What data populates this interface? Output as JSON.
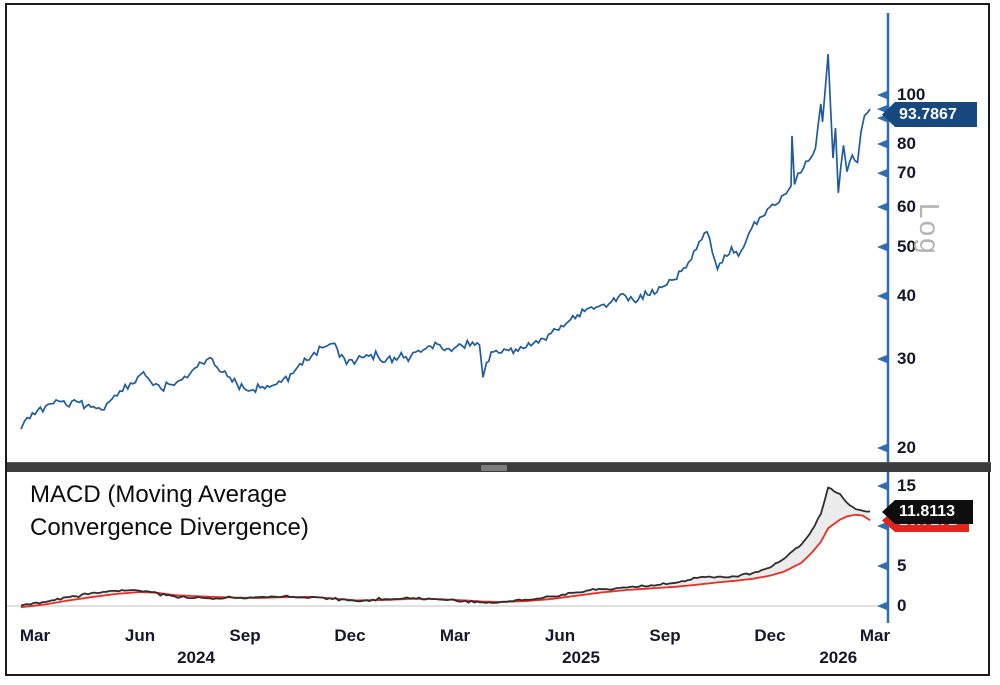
{
  "window": {
    "background": "#ffffff",
    "border_color": "#1b1b1b"
  },
  "price_panel": {
    "scale_label": "Log",
    "last_price": "93.7867",
    "line_color": "#1f5c9f",
    "axis_color": "#2e6db4",
    "badge_color": "#17497f",
    "tick_label_color": "#16162c"
  },
  "macd_panel": {
    "title_lines": {
      "0": "MACD (Moving Average",
      "1": "Convergence Divergence)"
    },
    "macd_value": "11.8113",
    "signal_value": "10.7171",
    "macd_color": "#2e2e2e",
    "signal_color": "#ee2c24",
    "fill_color": "#ebebeb",
    "zero_line_color": "#d6d6d6"
  },
  "x_axis": {
    "month_labels": [
      {
        "label": "Mar",
        "m": 0
      },
      {
        "label": "Jun",
        "m": 3
      },
      {
        "label": "Sep",
        "m": 6
      },
      {
        "label": "Dec",
        "m": 9
      },
      {
        "label": "Mar",
        "m": 12
      },
      {
        "label": "Jun",
        "m": 15
      },
      {
        "label": "Sep",
        "m": 18
      },
      {
        "label": "Dec",
        "m": 21
      },
      {
        "label": "Mar",
        "m": 24
      }
    ],
    "year_labels": [
      {
        "label": "2024",
        "m": 4.6
      },
      {
        "label": "2025",
        "m": 15.6
      },
      {
        "label": "2026",
        "m": 22.95
      }
    ]
  },
  "chart_data": [
    {
      "type": "line",
      "name": "price",
      "y_scale": "log",
      "ylim": [
        19.5,
        125
      ],
      "y_ticks": [
        100,
        90,
        80,
        70,
        60,
        50,
        40,
        30,
        20
      ],
      "x_unit": "months since Mar 2024",
      "xlim": [
        -0.43,
        24.3
      ],
      "grid": false,
      "legend": "none",
      "last_value": 93.7867,
      "series": [
        [
          -0.4,
          21.8
        ],
        [
          -0.3,
          22.6
        ],
        [
          0.0,
          23.3
        ],
        [
          0.3,
          24.2
        ],
        [
          0.6,
          24.9
        ],
        [
          0.9,
          24.3
        ],
        [
          1.2,
          24.7
        ],
        [
          1.6,
          24.1
        ],
        [
          1.9,
          23.8
        ],
        [
          2.2,
          25.0
        ],
        [
          2.5,
          25.9
        ],
        [
          2.8,
          26.8
        ],
        [
          3.0,
          27.9
        ],
        [
          3.1,
          28.3
        ],
        [
          3.3,
          27.1
        ],
        [
          3.6,
          26.2
        ],
        [
          3.9,
          26.7
        ],
        [
          4.2,
          27.3
        ],
        [
          4.5,
          28.5
        ],
        [
          4.9,
          29.9
        ],
        [
          5.0,
          30.2
        ],
        [
          5.2,
          28.9
        ],
        [
          5.5,
          27.7
        ],
        [
          5.9,
          26.8
        ],
        [
          6.3,
          25.8
        ],
        [
          6.7,
          26.4
        ],
        [
          7.1,
          27.4
        ],
        [
          7.5,
          28.9
        ],
        [
          7.9,
          30.4
        ],
        [
          8.2,
          31.6
        ],
        [
          8.5,
          32.2
        ],
        [
          8.9,
          29.3
        ],
        [
          9.2,
          29.9
        ],
        [
          9.6,
          30.6
        ],
        [
          10.0,
          29.6
        ],
        [
          10.4,
          30.3
        ],
        [
          10.8,
          30.9
        ],
        [
          11.1,
          31.3
        ],
        [
          11.5,
          32.1
        ],
        [
          11.9,
          31.1
        ],
        [
          12.2,
          31.9
        ],
        [
          12.5,
          32.4
        ],
        [
          12.7,
          32.0
        ],
        [
          12.8,
          27.6
        ],
        [
          12.9,
          29.5
        ],
        [
          13.1,
          31.0
        ],
        [
          13.4,
          31.4
        ],
        [
          13.8,
          31.1
        ],
        [
          14.1,
          32.3
        ],
        [
          14.6,
          32.7
        ],
        [
          14.9,
          34.3
        ],
        [
          15.3,
          35.9
        ],
        [
          15.7,
          37.3
        ],
        [
          16.1,
          38.1
        ],
        [
          16.4,
          38.6
        ],
        [
          16.8,
          40.4
        ],
        [
          17.1,
          39.2
        ],
        [
          17.5,
          40.2
        ],
        [
          17.9,
          41.6
        ],
        [
          18.2,
          43.0
        ],
        [
          18.6,
          45.5
        ],
        [
          18.9,
          49.5
        ],
        [
          19.2,
          53.6
        ],
        [
          19.5,
          45.2
        ],
        [
          19.9,
          50.0
        ],
        [
          20.1,
          48.0
        ],
        [
          20.4,
          53.3
        ],
        [
          20.7,
          57.2
        ],
        [
          21.0,
          60.0
        ],
        [
          21.4,
          63.5
        ],
        [
          21.6,
          66.0
        ],
        [
          21.63,
          83.0
        ],
        [
          21.7,
          66.5
        ],
        [
          21.8,
          70.0
        ],
        [
          22.1,
          74.0
        ],
        [
          22.3,
          78.5
        ],
        [
          22.45,
          96.0
        ],
        [
          22.5,
          88.5
        ],
        [
          22.66,
          120.5
        ],
        [
          22.8,
          75.0
        ],
        [
          22.87,
          86.0
        ],
        [
          22.95,
          64.0
        ],
        [
          23.1,
          79.5
        ],
        [
          23.2,
          70.5
        ],
        [
          23.35,
          76.0
        ],
        [
          23.5,
          73.5
        ],
        [
          23.6,
          84.5
        ],
        [
          23.7,
          91.0
        ],
        [
          23.8,
          92.5
        ],
        [
          23.86,
          93.7867
        ]
      ]
    },
    {
      "type": "line",
      "name": "MACD (Moving Average Convergence Divergence)",
      "y_scale": "linear",
      "ylim": [
        -1,
        15.5
      ],
      "y_ticks": [
        15,
        10,
        5,
        0
      ],
      "x_unit": "months since Mar 2024",
      "xlim": [
        -0.43,
        24.3
      ],
      "grid": "zero-line only",
      "last_values": {
        "macd": 11.8113,
        "signal": 10.7171
      },
      "series_format": "[month, macd, signal]",
      "series": [
        [
          -0.4,
          0.05,
          -0.15
        ],
        [
          0.3,
          0.5,
          0.2
        ],
        [
          0.9,
          1.1,
          0.65
        ],
        [
          1.6,
          1.6,
          1.1
        ],
        [
          2.3,
          1.9,
          1.5
        ],
        [
          3.0,
          1.9,
          1.75
        ],
        [
          3.5,
          1.6,
          1.65
        ],
        [
          4.0,
          1.2,
          1.35
        ],
        [
          5.0,
          0.95,
          1.15
        ],
        [
          5.7,
          1.0,
          1.05
        ],
        [
          6.4,
          1.1,
          1.0
        ],
        [
          7.1,
          1.2,
          1.1
        ],
        [
          7.9,
          1.1,
          1.15
        ],
        [
          8.5,
          0.85,
          0.95
        ],
        [
          9.2,
          0.6,
          0.7
        ],
        [
          10.0,
          0.85,
          0.75
        ],
        [
          10.8,
          1.0,
          0.9
        ],
        [
          11.6,
          0.8,
          0.85
        ],
        [
          12.3,
          0.65,
          0.7
        ],
        [
          12.8,
          0.45,
          0.55
        ],
        [
          13.3,
          0.5,
          0.5
        ],
        [
          14.0,
          0.8,
          0.6
        ],
        [
          14.8,
          1.2,
          0.9
        ],
        [
          15.5,
          1.7,
          1.3
        ],
        [
          16.2,
          2.1,
          1.7
        ],
        [
          16.9,
          2.3,
          2.0
        ],
        [
          17.6,
          2.6,
          2.2
        ],
        [
          18.3,
          2.9,
          2.4
        ],
        [
          19.0,
          3.6,
          2.7
        ],
        [
          19.5,
          3.65,
          2.95
        ],
        [
          20.0,
          3.7,
          3.15
        ],
        [
          20.5,
          4.1,
          3.4
        ],
        [
          21.0,
          4.8,
          3.8
        ],
        [
          21.4,
          5.9,
          4.3
        ],
        [
          21.9,
          7.7,
          5.4
        ],
        [
          22.2,
          9.5,
          6.7
        ],
        [
          22.45,
          11.5,
          8.0
        ],
        [
          22.66,
          14.8,
          9.7
        ],
        [
          23.0,
          14.0,
          10.8
        ],
        [
          23.2,
          12.9,
          11.2
        ],
        [
          23.45,
          12.1,
          11.4
        ],
        [
          23.65,
          11.9,
          11.3
        ],
        [
          23.86,
          11.81,
          10.72
        ]
      ]
    }
  ]
}
